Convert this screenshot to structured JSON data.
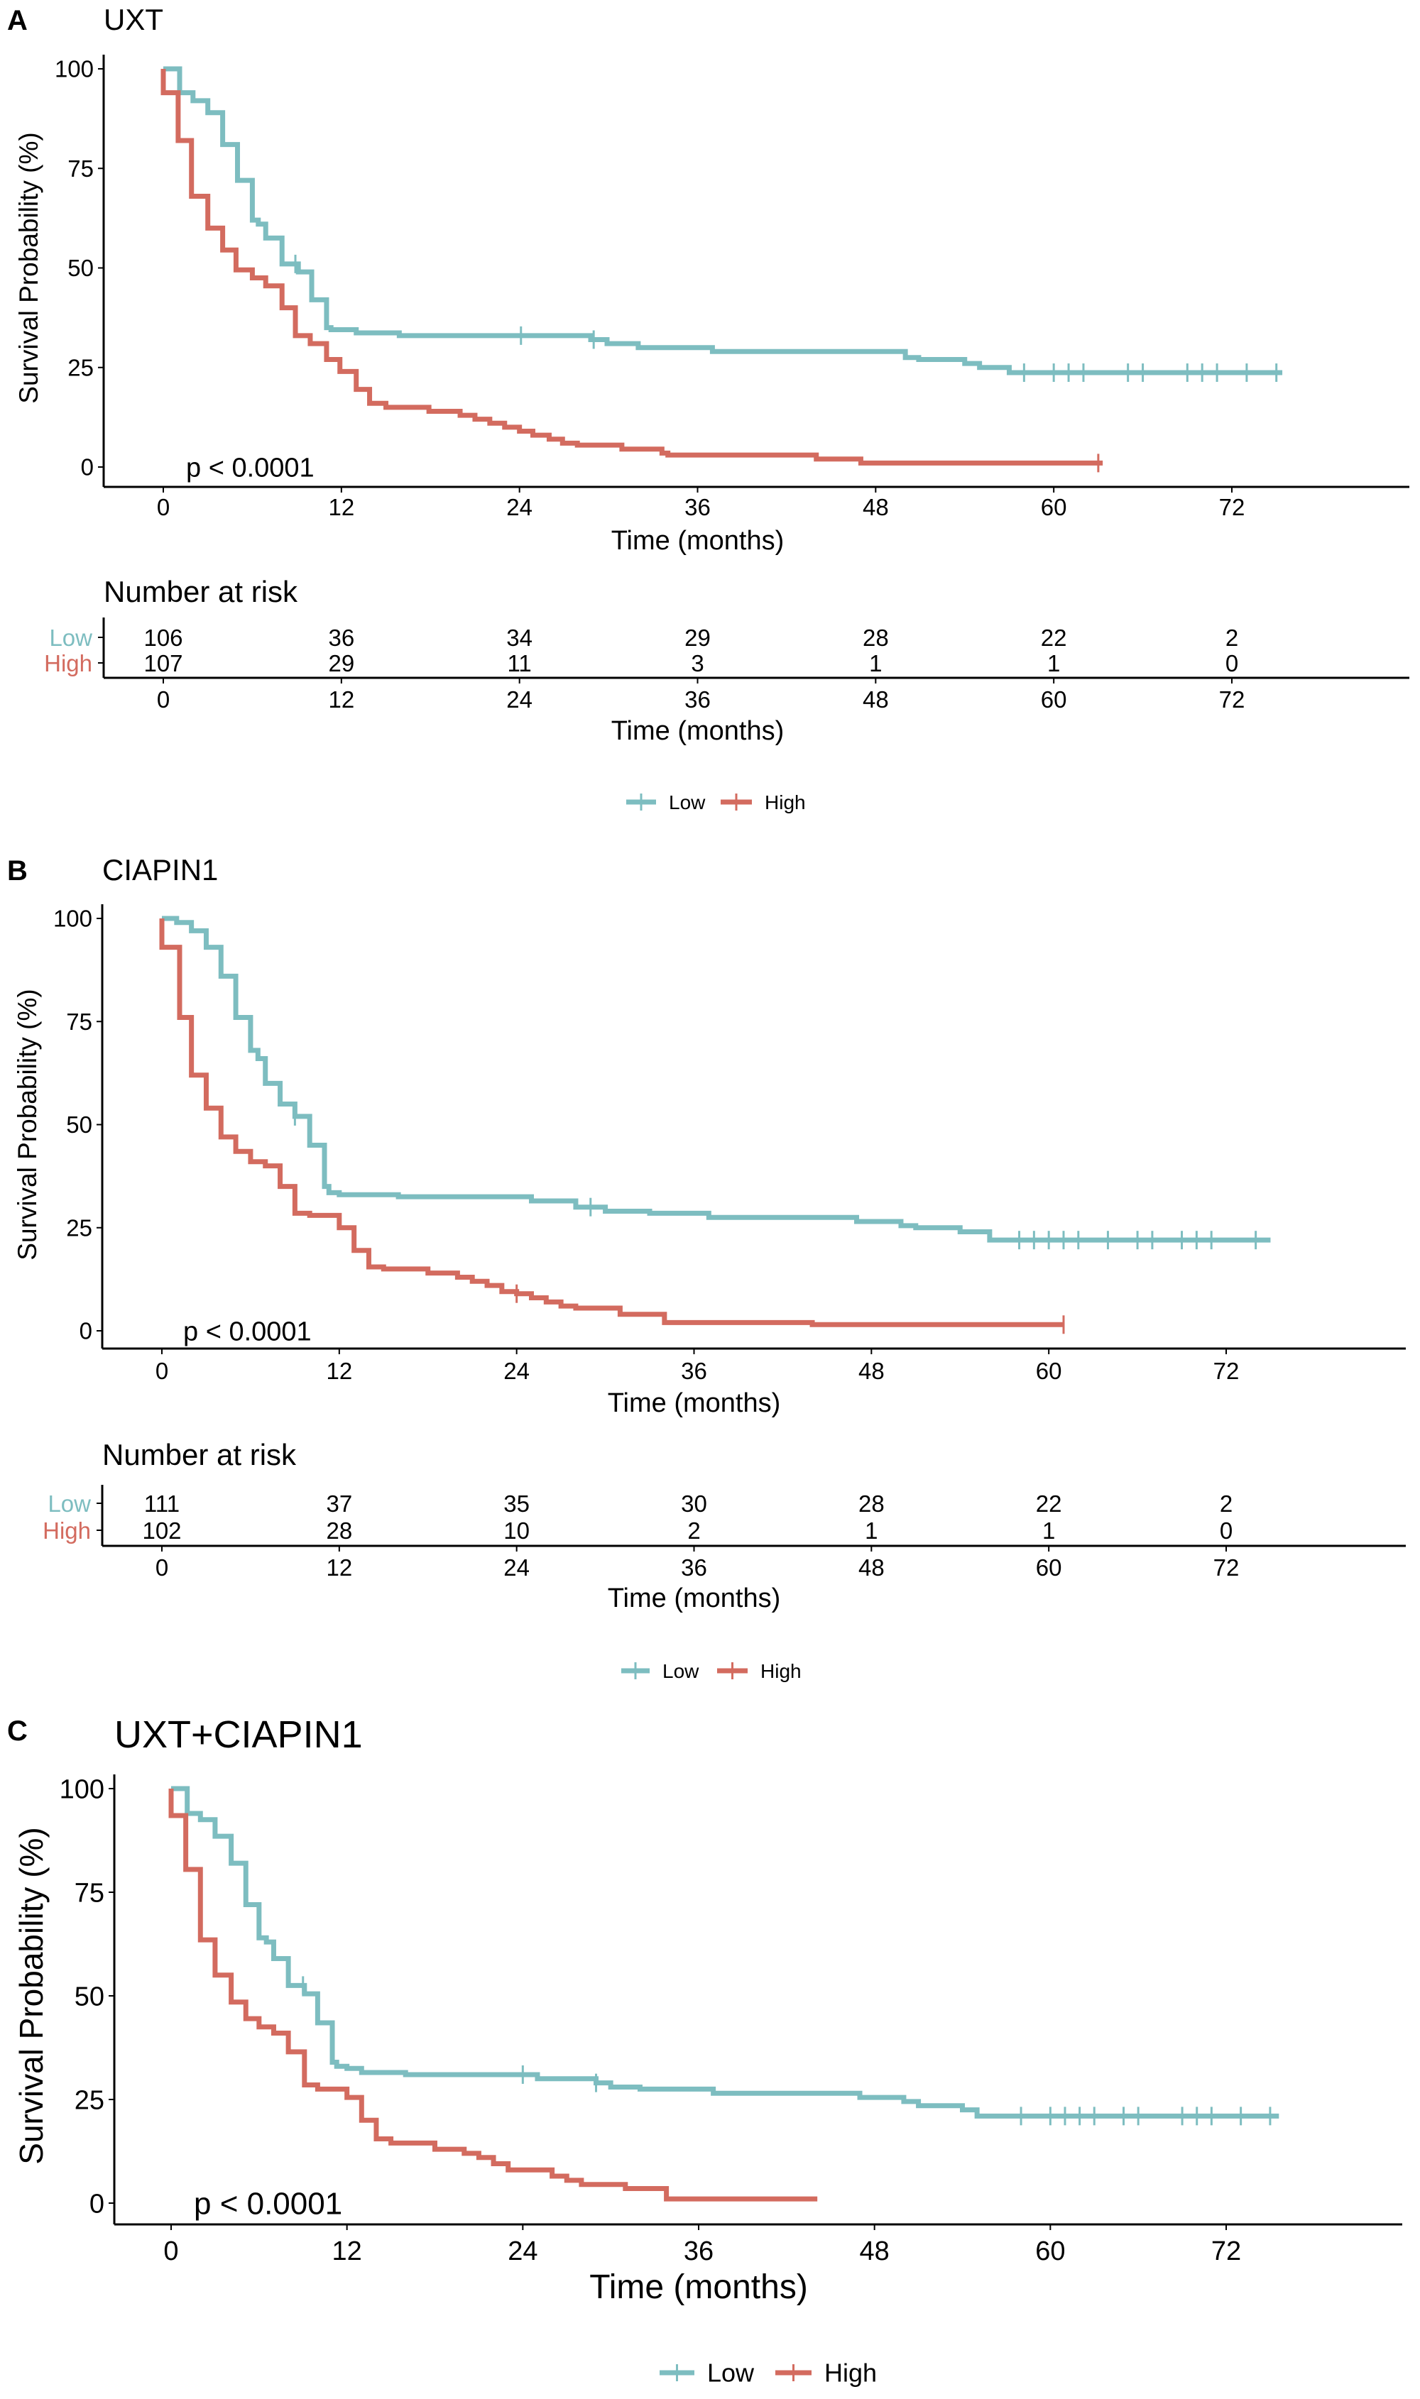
{
  "colors": {
    "Low": "#7dbdc0",
    "High": "#d36b5f"
  },
  "chart_data": [
    {
      "type": "line",
      "panel_label": "A",
      "title": "UXT",
      "xlabel": "Time (months)",
      "ylabel": "Survival Probability (%)",
      "xlim": [
        0,
        72
      ],
      "ylim": [
        0,
        100
      ],
      "xticks": [
        "0",
        "12",
        "24",
        "36",
        "48",
        "60",
        "72"
      ],
      "yticks": [
        "0",
        "25",
        "50",
        "75",
        "100"
      ],
      "grid": false,
      "pvalue": "p < 0.0001",
      "legend": {
        "position": "bottom",
        "entries": [
          "Low",
          "High"
        ]
      },
      "series": [
        {
          "name": "Low",
          "steps": [
            [
              0,
              100
            ],
            [
              1.1,
              94
            ],
            [
              2,
              92
            ],
            [
              3,
              89
            ],
            [
              4,
              81
            ],
            [
              5,
              72
            ],
            [
              6,
              62
            ],
            [
              6.4,
              61
            ],
            [
              6.9,
              57.5
            ],
            [
              8,
              51
            ],
            [
              9.1,
              49
            ],
            [
              10,
              42
            ],
            [
              11,
              35
            ],
            [
              11.3,
              34.5
            ],
            [
              13,
              33.7
            ],
            [
              15.9,
              33
            ],
            [
              28.8,
              32
            ],
            [
              29.9,
              31
            ],
            [
              32,
              30
            ],
            [
              37,
              29
            ],
            [
              50,
              27.5
            ],
            [
              50.9,
              27
            ],
            [
              54,
              26
            ],
            [
              55,
              25
            ],
            [
              57,
              23.7
            ],
            [
              75.4,
              23.7
            ]
          ],
          "censored": [
            8.9,
            24.1,
            29,
            58,
            60,
            61,
            62,
            65,
            66,
            69,
            70,
            71,
            73,
            75
          ]
        },
        {
          "name": "High",
          "steps": [
            [
              0,
              100
            ],
            [
              0,
              94
            ],
            [
              1,
              82
            ],
            [
              1.9,
              68
            ],
            [
              3,
              60
            ],
            [
              4,
              54.5
            ],
            [
              4.9,
              49.5
            ],
            [
              6,
              47.5
            ],
            [
              6.9,
              45.5
            ],
            [
              8,
              40
            ],
            [
              8.9,
              33
            ],
            [
              9.9,
              31
            ],
            [
              11,
              27
            ],
            [
              11.9,
              24
            ],
            [
              13,
              19.5
            ],
            [
              13.9,
              16
            ],
            [
              15,
              15
            ],
            [
              17.9,
              14
            ],
            [
              20,
              13
            ],
            [
              21,
              12
            ],
            [
              22,
              11
            ],
            [
              23,
              10
            ],
            [
              24,
              9
            ],
            [
              24.9,
              8
            ],
            [
              26,
              7
            ],
            [
              26.9,
              6
            ],
            [
              27.9,
              5.5
            ],
            [
              30.9,
              4.5
            ],
            [
              33.6,
              3.5
            ],
            [
              34,
              3
            ],
            [
              44,
              2
            ],
            [
              47,
              1
            ],
            [
              63.3,
              1
            ]
          ],
          "censored": [
            63
          ]
        }
      ],
      "risk_table": {
        "title": "Number at risk",
        "xlabel": "Time (months)",
        "times": [
          0,
          12,
          24,
          36,
          48,
          60,
          72
        ],
        "rows": [
          {
            "name": "Low",
            "values": [
              "106",
              "36",
              "34",
              "29",
              "28",
              "22",
              "2"
            ]
          },
          {
            "name": "High",
            "values": [
              "107",
              "29",
              "11",
              "3",
              "1",
              "1",
              "0"
            ]
          }
        ]
      }
    },
    {
      "type": "line",
      "panel_label": "B",
      "title": "CIAPIN1",
      "xlabel": "Time (months)",
      "ylabel": "Survival Probability (%)",
      "xlim": [
        0,
        72
      ],
      "ylim": [
        0,
        100
      ],
      "xticks": [
        "0",
        "12",
        "24",
        "36",
        "48",
        "60",
        "72"
      ],
      "yticks": [
        "0",
        "25",
        "50",
        "75",
        "100"
      ],
      "grid": false,
      "pvalue": "p < 0.0001",
      "legend": {
        "position": "bottom",
        "entries": [
          "Low",
          "High"
        ]
      },
      "series": [
        {
          "name": "Low",
          "steps": [
            [
              0,
              100
            ],
            [
              1,
              99
            ],
            [
              2,
              97
            ],
            [
              3,
              93
            ],
            [
              4,
              86
            ],
            [
              5,
              76
            ],
            [
              6,
              68
            ],
            [
              6.5,
              66
            ],
            [
              7,
              60
            ],
            [
              8,
              55
            ],
            [
              9,
              52
            ],
            [
              10,
              45
            ],
            [
              11,
              35
            ],
            [
              11.3,
              33.5
            ],
            [
              12,
              33
            ],
            [
              16,
              32.5
            ],
            [
              25,
              31.5
            ],
            [
              28,
              30
            ],
            [
              30,
              29
            ],
            [
              33,
              28.5
            ],
            [
              37,
              27.5
            ],
            [
              47,
              26.5
            ],
            [
              50,
              25.5
            ],
            [
              51,
              25
            ],
            [
              54,
              24
            ],
            [
              56,
              22
            ],
            [
              75,
              22
            ]
          ],
          "censored": [
            9,
            29,
            58,
            59,
            60,
            61,
            62,
            64,
            66,
            67,
            69,
            70,
            71,
            74
          ]
        },
        {
          "name": "High",
          "steps": [
            [
              0,
              100
            ],
            [
              0,
              93
            ],
            [
              1.2,
              76
            ],
            [
              2,
              62
            ],
            [
              3,
              54
            ],
            [
              4,
              47
            ],
            [
              5,
              43.5
            ],
            [
              6,
              41
            ],
            [
              7,
              40
            ],
            [
              8,
              35
            ],
            [
              9,
              28.5
            ],
            [
              10,
              28
            ],
            [
              12,
              25
            ],
            [
              13,
              19.5
            ],
            [
              14,
              15.5
            ],
            [
              15,
              15
            ],
            [
              18,
              14
            ],
            [
              20,
              13
            ],
            [
              21,
              12
            ],
            [
              22,
              11
            ],
            [
              23,
              9.5
            ],
            [
              24,
              9
            ],
            [
              25,
              8
            ],
            [
              26,
              7
            ],
            [
              27,
              6
            ],
            [
              28,
              5.5
            ],
            [
              31,
              4
            ],
            [
              34,
              2
            ],
            [
              44,
              1.5
            ],
            [
              61,
              1.5
            ]
          ],
          "censored": [
            24,
            61
          ]
        }
      ],
      "risk_table": {
        "title": "Number at risk",
        "xlabel": "Time (months)",
        "times": [
          0,
          12,
          24,
          36,
          48,
          60,
          72
        ],
        "rows": [
          {
            "name": "Low",
            "values": [
              "111",
              "37",
              "35",
              "30",
              "28",
              "22",
              "2"
            ]
          },
          {
            "name": "High",
            "values": [
              "102",
              "28",
              "10",
              "2",
              "1",
              "1",
              "0"
            ]
          }
        ]
      }
    },
    {
      "type": "line",
      "panel_label": "C",
      "title": "UXT+CIAPIN1",
      "xlabel": "Time (months)",
      "ylabel": "Survival Probability (%)",
      "xlim": [
        0,
        72
      ],
      "ylim": [
        0,
        100
      ],
      "xticks": [
        "0",
        "12",
        "24",
        "36",
        "48",
        "60",
        "72"
      ],
      "yticks": [
        "0",
        "25",
        "50",
        "75",
        "100"
      ],
      "grid": false,
      "pvalue": "p < 0.0001",
      "legend": {
        "position": "bottom",
        "entries": [
          "Low",
          "High"
        ]
      },
      "series": [
        {
          "name": "Low",
          "steps": [
            [
              0,
              100
            ],
            [
              1.1,
              94
            ],
            [
              2,
              92.5
            ],
            [
              3,
              88.5
            ],
            [
              4.1,
              82
            ],
            [
              5.1,
              72
            ],
            [
              6,
              64
            ],
            [
              6.5,
              63
            ],
            [
              7,
              59
            ],
            [
              8,
              52.5
            ],
            [
              9.1,
              50.5
            ],
            [
              10,
              43.5
            ],
            [
              11,
              34
            ],
            [
              11.3,
              33
            ],
            [
              12,
              32.5
            ],
            [
              13,
              31.5
            ],
            [
              16,
              31
            ],
            [
              25,
              30
            ],
            [
              29,
              29
            ],
            [
              30,
              28
            ],
            [
              32,
              27.5
            ],
            [
              37,
              26.5
            ],
            [
              47,
              25.5
            ],
            [
              50,
              24.5
            ],
            [
              51,
              23.5
            ],
            [
              54,
              22.5
            ],
            [
              55,
              21
            ],
            [
              75.6,
              21
            ]
          ],
          "censored": [
            9,
            24,
            29,
            58,
            60,
            61,
            62,
            63,
            65,
            66,
            69,
            70,
            71,
            73,
            75
          ]
        },
        {
          "name": "High",
          "steps": [
            [
              0,
              100
            ],
            [
              0,
              93.5
            ],
            [
              1,
              80.5
            ],
            [
              2,
              63.5
            ],
            [
              3,
              55
            ],
            [
              4.1,
              48.5
            ],
            [
              5.1,
              44.5
            ],
            [
              6,
              42.5
            ],
            [
              7,
              41
            ],
            [
              8,
              36.5
            ],
            [
              9.1,
              28.5
            ],
            [
              10,
              27.5
            ],
            [
              12,
              25.5
            ],
            [
              13,
              20
            ],
            [
              14,
              15.5
            ],
            [
              15,
              14.5
            ],
            [
              18,
              13
            ],
            [
              20,
              12
            ],
            [
              21,
              11
            ],
            [
              22,
              9.5
            ],
            [
              23,
              8
            ],
            [
              26,
              6.5
            ],
            [
              27,
              5.5
            ],
            [
              28,
              4.5
            ],
            [
              31,
              3.5
            ],
            [
              33.8,
              1
            ],
            [
              44.1,
              1
            ]
          ],
          "censored": []
        }
      ]
    }
  ]
}
